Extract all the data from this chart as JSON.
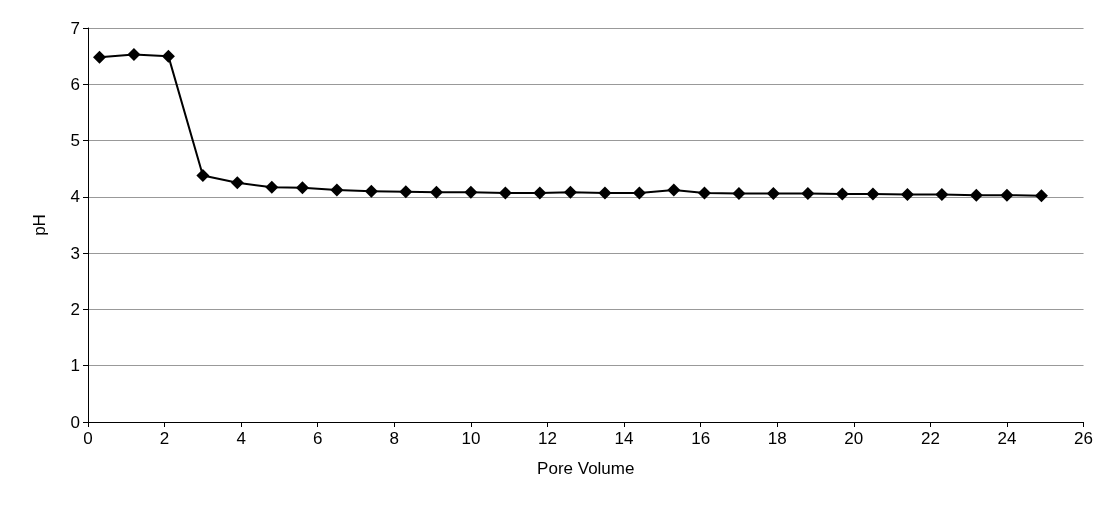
{
  "chart_data": {
    "type": "line",
    "xlabel": "Pore Volume",
    "ylabel": "pH",
    "x": [
      0.3,
      1.2,
      2.1,
      3.0,
      3.9,
      4.8,
      5.6,
      6.5,
      7.4,
      8.3,
      9.1,
      10.0,
      10.9,
      11.8,
      12.6,
      13.5,
      14.4,
      15.3,
      16.1,
      17.0,
      17.9,
      18.8,
      19.7,
      20.5,
      21.4,
      22.3,
      23.2,
      24.0,
      24.9
    ],
    "series": [
      {
        "color": "#000000",
        "values": [
          6.48,
          6.53,
          6.5,
          4.38,
          4.25,
          4.17,
          4.16,
          4.12,
          4.1,
          4.09,
          4.08,
          4.08,
          4.07,
          4.07,
          4.08,
          4.07,
          4.07,
          4.12,
          4.07,
          4.06,
          4.06,
          4.06,
          4.05,
          4.05,
          4.04,
          4.04,
          4.03,
          4.03,
          4.02
        ]
      }
    ],
    "xlim": [
      0,
      26
    ],
    "xticks": [
      0,
      2,
      4,
      6,
      8,
      10,
      12,
      14,
      16,
      18,
      20,
      22,
      24,
      26
    ],
    "ylim": [
      0,
      7
    ],
    "yticks": [
      0,
      1,
      2,
      3,
      4,
      5,
      6,
      7
    ],
    "grid": "y",
    "marker": "diamond",
    "line_style": "solid"
  }
}
